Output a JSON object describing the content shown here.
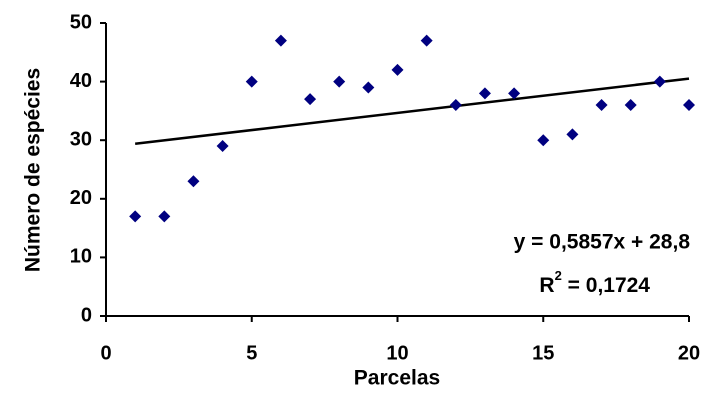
{
  "chart_data": {
    "type": "scatter",
    "x_label": "Parcelas",
    "y_label": "Número de espécies",
    "x": [
      1,
      2,
      3,
      4,
      5,
      6,
      7,
      8,
      9,
      10,
      11,
      12,
      13,
      14,
      15,
      16,
      17,
      18,
      19,
      20
    ],
    "series": [
      {
        "color": "#000080",
        "values": [
          17,
          17,
          23,
          29,
          40,
          47,
          37,
          40,
          39,
          42,
          47,
          36,
          38,
          38,
          30,
          31,
          36,
          36,
          40,
          36
        ]
      }
    ],
    "xlim": [
      0,
      20
    ],
    "xticks": [
      0,
      5,
      10,
      15,
      20
    ],
    "ylim": [
      0,
      50
    ],
    "yticks": [
      0,
      10,
      20,
      30,
      40,
      50
    ],
    "trendline": {
      "slope": 0.5857,
      "intercept": 28.8,
      "x_range": [
        1,
        20
      ],
      "color": "#000000",
      "equation": "y = 0,5857x + 28,8",
      "r_squared": {
        "base": "R",
        "sup": "2",
        "rest": " = 0,1724"
      }
    }
  }
}
